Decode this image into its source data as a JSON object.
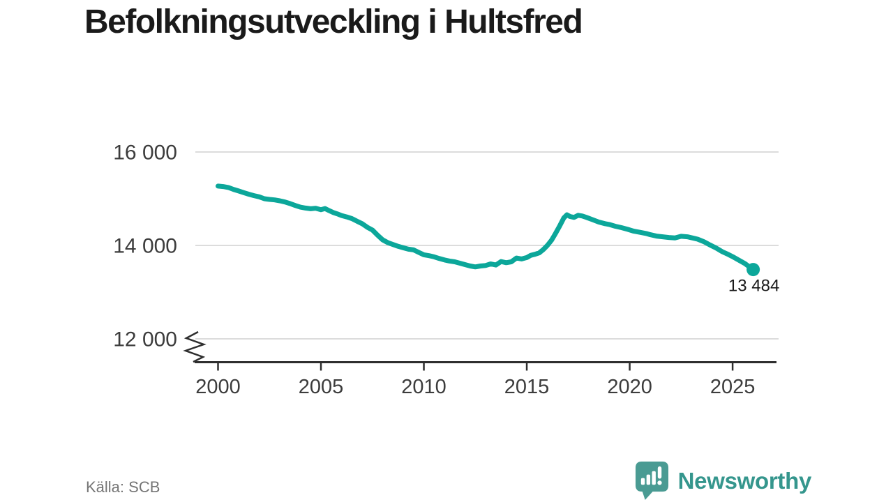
{
  "title": "Befolkningsutveckling i Hultsfred",
  "source": "Källa: SCB",
  "brand": {
    "wordmark": "Newsworthy"
  },
  "colors": {
    "line": "#0ca79a",
    "grid": "#dcdcdc",
    "axis": "#2e2e2e",
    "text": "#3c3c3c",
    "title": "#1a1a1a",
    "muted": "#757575",
    "logo_icon": "#4a9b93",
    "accent_dark": "#35968d"
  },
  "chart_data": {
    "type": "line",
    "title": "Befolkningsutveckling i Hultsfred",
    "xlabel": "",
    "ylabel": "",
    "x_ticks": [
      2000,
      2005,
      2010,
      2015,
      2020,
      2025
    ],
    "x_tick_labels": [
      "2000",
      "2005",
      "2010",
      "2015",
      "2020",
      "2025"
    ],
    "y_ticks": [
      12000,
      14000,
      16000
    ],
    "y_tick_labels": [
      "12 000",
      "14 000",
      "16 000"
    ],
    "xlim": [
      1999,
      2027.2
    ],
    "ylim": [
      12000,
      16000
    ],
    "axis_break": true,
    "grid": "horizontal",
    "legend": "none",
    "end_label": "13 484",
    "end_value": 13484,
    "series": [
      {
        "points": [
          [
            2000.0,
            15270
          ],
          [
            2000.25,
            15260
          ],
          [
            2000.5,
            15240
          ],
          [
            2000.75,
            15200
          ],
          [
            2001.0,
            15165
          ],
          [
            2001.25,
            15130
          ],
          [
            2001.5,
            15095
          ],
          [
            2001.75,
            15065
          ],
          [
            2002.0,
            15040
          ],
          [
            2002.25,
            15000
          ],
          [
            2002.5,
            14985
          ],
          [
            2002.75,
            14975
          ],
          [
            2003.0,
            14955
          ],
          [
            2003.25,
            14930
          ],
          [
            2003.5,
            14895
          ],
          [
            2003.75,
            14855
          ],
          [
            2004.0,
            14820
          ],
          [
            2004.25,
            14800
          ],
          [
            2004.5,
            14785
          ],
          [
            2004.75,
            14795
          ],
          [
            2005.0,
            14765
          ],
          [
            2005.2,
            14790
          ],
          [
            2005.4,
            14745
          ],
          [
            2005.6,
            14705
          ],
          [
            2005.8,
            14675
          ],
          [
            2006.0,
            14640
          ],
          [
            2006.25,
            14610
          ],
          [
            2006.5,
            14575
          ],
          [
            2006.75,
            14520
          ],
          [
            2007.0,
            14465
          ],
          [
            2007.25,
            14390
          ],
          [
            2007.5,
            14330
          ],
          [
            2007.75,
            14220
          ],
          [
            2008.0,
            14120
          ],
          [
            2008.25,
            14060
          ],
          [
            2008.5,
            14020
          ],
          [
            2008.75,
            13980
          ],
          [
            2009.0,
            13950
          ],
          [
            2009.25,
            13920
          ],
          [
            2009.5,
            13905
          ],
          [
            2009.75,
            13850
          ],
          [
            2010.0,
            13800
          ],
          [
            2010.25,
            13780
          ],
          [
            2010.5,
            13755
          ],
          [
            2010.75,
            13720
          ],
          [
            2011.0,
            13690
          ],
          [
            2011.25,
            13665
          ],
          [
            2011.5,
            13650
          ],
          [
            2011.75,
            13620
          ],
          [
            2012.0,
            13590
          ],
          [
            2012.25,
            13560
          ],
          [
            2012.5,
            13540
          ],
          [
            2012.75,
            13560
          ],
          [
            2013.0,
            13570
          ],
          [
            2013.25,
            13605
          ],
          [
            2013.5,
            13580
          ],
          [
            2013.75,
            13655
          ],
          [
            2014.0,
            13630
          ],
          [
            2014.25,
            13650
          ],
          [
            2014.5,
            13730
          ],
          [
            2014.75,
            13710
          ],
          [
            2015.0,
            13740
          ],
          [
            2015.2,
            13790
          ],
          [
            2015.4,
            13810
          ],
          [
            2015.6,
            13840
          ],
          [
            2015.8,
            13910
          ],
          [
            2016.0,
            14000
          ],
          [
            2016.2,
            14110
          ],
          [
            2016.4,
            14260
          ],
          [
            2016.6,
            14420
          ],
          [
            2016.8,
            14590
          ],
          [
            2016.95,
            14655
          ],
          [
            2017.1,
            14620
          ],
          [
            2017.3,
            14600
          ],
          [
            2017.5,
            14645
          ],
          [
            2017.7,
            14630
          ],
          [
            2017.9,
            14600
          ],
          [
            2018.2,
            14550
          ],
          [
            2018.5,
            14500
          ],
          [
            2018.8,
            14465
          ],
          [
            2019.0,
            14450
          ],
          [
            2019.3,
            14410
          ],
          [
            2019.6,
            14380
          ],
          [
            2019.9,
            14345
          ],
          [
            2020.2,
            14305
          ],
          [
            2020.5,
            14280
          ],
          [
            2020.8,
            14255
          ],
          [
            2021.0,
            14230
          ],
          [
            2021.3,
            14200
          ],
          [
            2021.6,
            14185
          ],
          [
            2021.9,
            14170
          ],
          [
            2022.2,
            14160
          ],
          [
            2022.5,
            14195
          ],
          [
            2022.8,
            14185
          ],
          [
            2023.0,
            14165
          ],
          [
            2023.3,
            14135
          ],
          [
            2023.6,
            14080
          ],
          [
            2023.9,
            14010
          ],
          [
            2024.2,
            13945
          ],
          [
            2024.5,
            13865
          ],
          [
            2024.8,
            13805
          ],
          [
            2025.0,
            13760
          ],
          [
            2025.3,
            13685
          ],
          [
            2025.6,
            13610
          ],
          [
            2025.85,
            13530
          ],
          [
            2026.0,
            13484
          ]
        ]
      }
    ]
  }
}
